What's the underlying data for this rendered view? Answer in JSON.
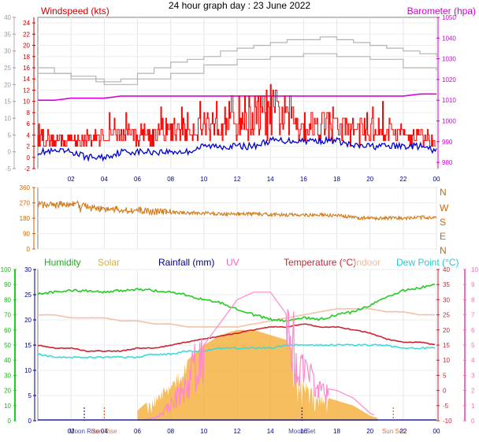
{
  "title": "24 hour graph day : 23 June 2022",
  "panel1": {
    "left_label": "Windspeed (kts)",
    "right_label": "Barometer (hpa)",
    "outer_ticks": [
      "-5",
      "0",
      "5",
      "10",
      "15",
      "20",
      "25",
      "30",
      "35",
      "40"
    ],
    "wind_ticks": [
      "-2",
      "0",
      "2",
      "4",
      "6",
      "8",
      "10",
      "12",
      "14",
      "16",
      "18",
      "20",
      "22",
      "24"
    ],
    "baro_ticks": [
      "980",
      "990",
      "1000",
      "1010",
      "1020",
      "1030",
      "1040",
      "1050"
    ]
  },
  "panel2": {
    "ticks": [
      "0",
      "90",
      "180",
      "270",
      "360"
    ],
    "compass": [
      "N",
      "W",
      "S",
      "E",
      "N"
    ]
  },
  "panel3": {
    "labels": {
      "humidity": "Humidity",
      "solar": "Solar",
      "rainfall": "Rainfall (mm)",
      "uv": "UV",
      "temperature": "Temperature (°C)",
      "indoor": "Indoor",
      "dewpoint": "Dew Point (°C)"
    },
    "humidity_ticks": [
      "0",
      "10",
      "20",
      "30",
      "40",
      "50",
      "60",
      "70",
      "80",
      "90",
      "100"
    ],
    "rain_ticks": [
      "0",
      "5",
      "10",
      "15",
      "20",
      "25",
      "30"
    ],
    "temp_ticks": [
      "-10",
      "-5",
      "0",
      "5",
      "10",
      "15",
      "20",
      "25",
      "30",
      "35",
      "40"
    ],
    "uv_ticks": [
      "0",
      "1",
      "2",
      "3",
      "4",
      "5",
      "6",
      "7",
      "8",
      "9",
      "10"
    ],
    "annotations": [
      "Moon Rise",
      "Moon Set",
      "Sun Rise",
      "Sun Set"
    ]
  },
  "hour_ticks": [
    "02",
    "04",
    "06",
    "08",
    "10",
    "12",
    "14",
    "16",
    "18",
    "20",
    "22",
    "00"
  ],
  "colors": {
    "wind_gust": "#ff0000",
    "wind_avg": "#0000cc",
    "barometer": "#dd00dd",
    "baro_trace": "#b4b4b4",
    "winddir": "#d27a19",
    "humidity": "#22cc22",
    "solar": "#f4a82a",
    "rainfall": "#000080",
    "uv": "#ff88cc",
    "temperature": "#cc2233",
    "indoor": "#f5c0a8",
    "dewpoint": "#33dddd"
  },
  "chart_data": [
    {
      "type": "line",
      "title": "",
      "xlabel": "",
      "ylabel": "Windspeed (kts)",
      "xlim": [
        0,
        24
      ],
      "ylim": [
        -2,
        25
      ],
      "y2label": "Barometer (hpa)",
      "y2lim": [
        977,
        1050
      ],
      "x": [
        0,
        1,
        2,
        3,
        4,
        5,
        6,
        7,
        8,
        9,
        10,
        11,
        12,
        13,
        14,
        15,
        16,
        17,
        18,
        19,
        20,
        21,
        22,
        23,
        24
      ],
      "series": [
        {
          "name": "Windspeed gust",
          "values": [
            4,
            3,
            3,
            3,
            4,
            4,
            4,
            4,
            5,
            5,
            6,
            7,
            7,
            7,
            8,
            7,
            6,
            6,
            5,
            5,
            5,
            5,
            4,
            4,
            3
          ]
        },
        {
          "name": "Windspeed avg",
          "values": [
            1,
            1,
            1,
            0,
            0,
            1,
            1,
            1,
            1,
            1,
            2,
            2,
            2,
            2,
            3,
            3,
            3,
            3,
            3,
            2,
            2,
            2,
            2,
            2,
            1
          ]
        },
        {
          "name": "Barometer",
          "values": [
            1010,
            1010,
            1011,
            1011,
            1011,
            1012,
            1012,
            1012,
            1012,
            1012,
            1012,
            1012,
            1012,
            1012,
            1012,
            1012,
            1012,
            1012,
            1012,
            1012,
            1012,
            1012,
            1012,
            1013,
            1013
          ]
        }
      ]
    },
    {
      "type": "scatter",
      "title": "",
      "xlabel": "",
      "ylabel": "",
      "xlim": [
        0,
        24
      ],
      "ylim": [
        0,
        360
      ],
      "x": [
        0,
        1,
        2,
        3,
        4,
        5,
        6,
        7,
        8,
        9,
        10,
        11,
        12,
        13,
        14,
        15,
        16,
        17,
        18,
        19,
        20,
        21,
        22,
        23,
        24
      ],
      "series": [
        {
          "name": "Wind direction",
          "values": [
            260,
            255,
            270,
            245,
            235,
            230,
            225,
            220,
            215,
            212,
            210,
            205,
            205,
            205,
            200,
            200,
            200,
            200,
            195,
            185,
            180,
            180,
            180,
            185,
            185
          ]
        }
      ]
    },
    {
      "type": "line",
      "title": "",
      "xlabel": "",
      "ylabel": "",
      "xlim": [
        0,
        24
      ],
      "x": [
        0,
        1,
        2,
        3,
        4,
        5,
        6,
        7,
        8,
        9,
        10,
        11,
        12,
        13,
        14,
        15,
        16,
        17,
        18,
        19,
        20,
        21,
        22,
        23,
        24
      ],
      "series": [
        {
          "name": "Humidity",
          "axis": "humidity",
          "ylim": [
            0,
            100
          ],
          "values": [
            84,
            85,
            86,
            86,
            85,
            86,
            87,
            86,
            85,
            83,
            80,
            78,
            74,
            70,
            67,
            66,
            68,
            67,
            70,
            72,
            76,
            82,
            86,
            88,
            90
          ]
        },
        {
          "name": "Temperature",
          "axis": "temperature",
          "ylim": [
            -10,
            40
          ],
          "values": [
            15,
            14,
            14,
            13,
            13,
            13,
            14,
            14,
            15,
            16,
            17,
            18,
            19,
            20,
            21,
            21,
            22,
            21,
            21,
            20,
            19,
            17,
            16,
            16,
            15
          ]
        },
        {
          "name": "Indoor",
          "axis": "temperature",
          "ylim": [
            -10,
            40
          ],
          "values": [
            25,
            25,
            24,
            24,
            24,
            23,
            23,
            22,
            22,
            21,
            21,
            21,
            21,
            22,
            23,
            24,
            25,
            26,
            27,
            27,
            27,
            26,
            26,
            25,
            25
          ]
        },
        {
          "name": "Dew Point",
          "axis": "temperature",
          "ylim": [
            -10,
            40
          ],
          "values": [
            12,
            11,
            11,
            11,
            11,
            11,
            11,
            12,
            12,
            13,
            13,
            14,
            14,
            14,
            14,
            15,
            15,
            15,
            15,
            15,
            15,
            15,
            14,
            14,
            14
          ]
        },
        {
          "name": "Solar",
          "axis": "rainfall",
          "ylim": [
            0,
            30
          ],
          "values": [
            0,
            0,
            0,
            0,
            0,
            0,
            2,
            5,
            8,
            12,
            15,
            17,
            18,
            18,
            17,
            16,
            8,
            5,
            4,
            3,
            1,
            0,
            0,
            0,
            0
          ]
        },
        {
          "name": "UV",
          "axis": "uv",
          "ylim": [
            0,
            10
          ],
          "values": [
            0,
            0,
            0,
            0,
            0,
            0,
            0,
            0.2,
            1,
            2.5,
            5,
            6.5,
            8,
            8.5,
            8.5,
            7,
            3.5,
            2.2,
            2,
            1.5,
            0.5,
            0,
            0,
            0,
            0
          ]
        },
        {
          "name": "Rainfall (mm)",
          "axis": "rainfall",
          "ylim": [
            0,
            30
          ],
          "values": [
            0,
            0,
            0,
            0,
            0,
            0,
            0,
            0,
            0,
            0,
            0,
            0,
            0,
            0,
            0,
            0,
            0,
            0,
            0,
            0,
            0,
            0,
            0,
            0,
            0
          ]
        }
      ]
    }
  ]
}
